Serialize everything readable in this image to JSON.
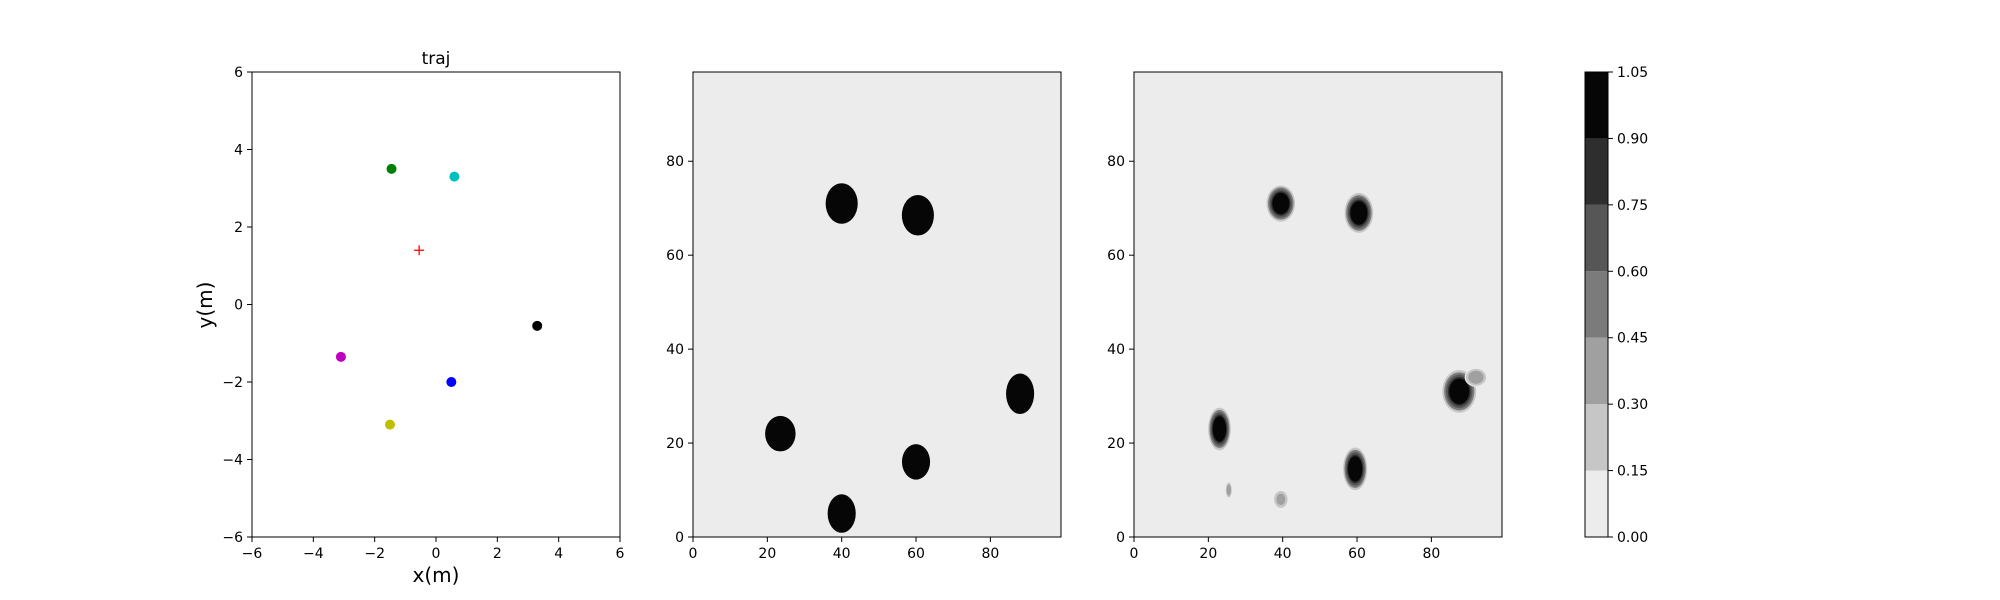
{
  "chart_data": [
    {
      "type": "scatter",
      "title": "traj",
      "xlabel": "x(m)",
      "ylabel": "y(m)",
      "xlim": [
        -6,
        6
      ],
      "ylim": [
        -6,
        6
      ],
      "xticks": [
        -6,
        -4,
        -2,
        0,
        2,
        4,
        6
      ],
      "yticks": [
        -6,
        -4,
        -2,
        0,
        2,
        4,
        6
      ],
      "grid": false,
      "points": [
        {
          "x": -1.45,
          "y": 3.5,
          "color": "#008000",
          "marker": "circle"
        },
        {
          "x": 0.6,
          "y": 3.3,
          "color": "#00bfbf",
          "marker": "circle"
        },
        {
          "x": -0.55,
          "y": 1.4,
          "color": "#ff0000",
          "marker": "plus"
        },
        {
          "x": 3.3,
          "y": -0.55,
          "color": "#000000",
          "marker": "circle"
        },
        {
          "x": -3.1,
          "y": -1.35,
          "color": "#bf00bf",
          "marker": "circle"
        },
        {
          "x": 0.5,
          "y": -2.0,
          "color": "#0000ff",
          "marker": "circle"
        },
        {
          "x": -1.5,
          "y": -3.1,
          "color": "#bfbf00",
          "marker": "circle"
        }
      ]
    },
    {
      "type": "heatmap",
      "title": "",
      "xlim": [
        0,
        99
      ],
      "ylim": [
        0,
        99
      ],
      "xticks": [
        0,
        20,
        40,
        60,
        80
      ],
      "yticks": [
        0,
        20,
        40,
        60,
        80
      ],
      "background_value": 0.05,
      "blobs": [
        {
          "x": 40,
          "y": 71,
          "rx": 4,
          "ry": 4,
          "value": 1.0
        },
        {
          "x": 60.5,
          "y": 68.5,
          "rx": 4,
          "ry": 4,
          "value": 1.0
        },
        {
          "x": 88,
          "y": 30.5,
          "rx": 3.5,
          "ry": 4,
          "value": 1.0
        },
        {
          "x": 23.5,
          "y": 22,
          "rx": 3.8,
          "ry": 3.5,
          "value": 1.0
        },
        {
          "x": 60,
          "y": 16,
          "rx": 3.5,
          "ry": 3.5,
          "value": 1.0
        },
        {
          "x": 40,
          "y": 5,
          "rx": 3.5,
          "ry": 3.8,
          "value": 1.0
        }
      ]
    },
    {
      "type": "heatmap",
      "title": "",
      "xlim": [
        0,
        99
      ],
      "ylim": [
        0,
        99
      ],
      "xticks": [
        0,
        20,
        40,
        60,
        80
      ],
      "yticks": [
        0,
        20,
        40,
        60,
        80
      ],
      "background_value": 0.05,
      "blobs": [
        {
          "x": 39.5,
          "y": 71,
          "rx": 3.8,
          "ry": 3.8,
          "value": 1.0
        },
        {
          "x": 60.5,
          "y": 69,
          "rx": 3.8,
          "ry": 4.2,
          "value": 1.0
        },
        {
          "x": 87.5,
          "y": 31,
          "rx": 4.5,
          "ry": 4.5,
          "value": 1.0
        },
        {
          "x": 92,
          "y": 34,
          "rx": 3,
          "ry": 2,
          "value": 0.4
        },
        {
          "x": 23,
          "y": 23,
          "rx": 3,
          "ry": 4.5,
          "value": 1.0
        },
        {
          "x": 59.5,
          "y": 14.5,
          "rx": 3.2,
          "ry": 4.5,
          "value": 1.0
        },
        {
          "x": 25.5,
          "y": 10,
          "rx": 1,
          "ry": 2,
          "value": 0.3
        },
        {
          "x": 39.5,
          "y": 8,
          "rx": 2,
          "ry": 2,
          "value": 0.35
        }
      ]
    }
  ],
  "colorbar": {
    "levels": [
      0.0,
      0.15,
      0.3,
      0.45,
      0.6,
      0.75,
      0.9,
      1.05
    ],
    "tick_labels": [
      "0.00",
      "0.15",
      "0.30",
      "0.45",
      "0.60",
      "0.75",
      "0.90",
      "1.05"
    ],
    "colors": [
      "#ececec",
      "#c6c6c6",
      "#a0a0a0",
      "#7b7b7b",
      "#565656",
      "#2e2e2e",
      "#060606"
    ]
  }
}
